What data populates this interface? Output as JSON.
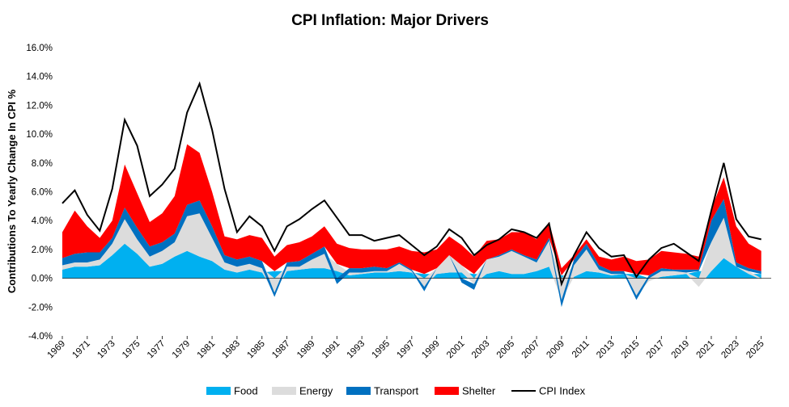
{
  "chart_data": {
    "type": "area",
    "title": "CPI Inflation: Major Drivers",
    "xlabel": "",
    "ylabel": "Contributions To Yearly Change In CPI %",
    "ylim": [
      -4.0,
      16.0
    ],
    "xlim": [
      1969,
      2025.8
    ],
    "y_ticks": [
      "16.0%",
      "14.0%",
      "12.0%",
      "10.0%",
      "8.0%",
      "6.0%",
      "4.0%",
      "2.0%",
      "0.0%",
      "-2.0%",
      "-4.0%"
    ],
    "y_tick_values": [
      16,
      14,
      12,
      10,
      8,
      6,
      4,
      2,
      0,
      -2,
      -4
    ],
    "x_ticks": [
      "1969",
      "1971",
      "1973",
      "1975",
      "1977",
      "1979",
      "1981",
      "1983",
      "1985",
      "1987",
      "1989",
      "1991",
      "1993",
      "1995",
      "1997",
      "1999",
      "2001",
      "2003",
      "2005",
      "2007",
      "2009",
      "2011",
      "2013",
      "2015",
      "2017",
      "2019",
      "2021",
      "2023",
      "2025"
    ],
    "grid": false,
    "legend_position": "bottom",
    "series": [
      {
        "name": "Food",
        "color": "#00b0f0",
        "type": "stacked-area",
        "x": [
          1969,
          1970,
          1971,
          1972,
          1973,
          1974,
          1975,
          1976,
          1977,
          1978,
          1979,
          1980,
          1981,
          1982,
          1983,
          1984,
          1985,
          1986,
          1987,
          1988,
          1989,
          1990,
          1991,
          1992,
          1993,
          1994,
          1995,
          1996,
          1997,
          1998,
          1999,
          2000,
          2001,
          2002,
          2003,
          2004,
          2005,
          2006,
          2007,
          2008,
          2009,
          2010,
          2011,
          2012,
          2013,
          2014,
          2015,
          2016,
          2017,
          2018,
          2019,
          2020,
          2021,
          2022,
          2023,
          2024,
          2025
        ],
        "values": [
          0.6,
          0.8,
          0.8,
          0.9,
          1.6,
          2.4,
          1.7,
          0.8,
          1.0,
          1.5,
          1.9,
          1.5,
          1.2,
          0.6,
          0.4,
          0.6,
          0.4,
          0.5,
          0.5,
          0.6,
          0.7,
          0.7,
          0.5,
          0.2,
          0.3,
          0.4,
          0.4,
          0.5,
          0.4,
          0.3,
          0.3,
          0.4,
          0.4,
          0.3,
          0.3,
          0.5,
          0.3,
          0.3,
          0.5,
          0.8,
          0.2,
          0.1,
          0.5,
          0.4,
          0.2,
          0.3,
          0.3,
          0.0,
          0.1,
          0.2,
          0.3,
          0.5,
          0.5,
          1.4,
          0.8,
          0.3,
          0.3
        ]
      },
      {
        "name": "Energy",
        "color": "#dcdcdc",
        "type": "stacked-area",
        "x": [
          1969,
          1970,
          1971,
          1972,
          1973,
          1974,
          1975,
          1976,
          1977,
          1978,
          1979,
          1980,
          1981,
          1982,
          1983,
          1984,
          1985,
          1986,
          1987,
          1988,
          1989,
          1990,
          1991,
          1992,
          1993,
          1994,
          1995,
          1996,
          1997,
          1998,
          1999,
          2000,
          2001,
          2002,
          2003,
          2004,
          2005,
          2006,
          2007,
          2008,
          2009,
          2010,
          2011,
          2012,
          2013,
          2014,
          2015,
          2016,
          2017,
          2018,
          2019,
          2020,
          2021,
          2022,
          2023,
          2024,
          2025
        ],
        "values": [
          0.3,
          0.3,
          0.3,
          0.4,
          0.8,
          1.7,
          1.0,
          0.7,
          0.9,
          1.0,
          2.4,
          3.0,
          1.6,
          0.5,
          0.4,
          0.4,
          0.3,
          -1.0,
          0.3,
          0.2,
          0.6,
          1.0,
          0.5,
          0.2,
          0.1,
          0.1,
          0.1,
          0.5,
          0.1,
          -0.6,
          0.4,
          1.2,
          0.5,
          -0.4,
          1.0,
          1.0,
          1.6,
          1.2,
          0.6,
          1.8,
          -1.5,
          0.8,
          1.5,
          0.2,
          0.1,
          0.0,
          -1.2,
          -0.2,
          0.4,
          0.3,
          0.1,
          -0.6,
          2.0,
          2.8,
          0.0,
          0.2,
          -0.1
        ]
      },
      {
        "name": "Transport",
        "color": "#0070c0",
        "type": "stacked-area",
        "x": [
          1969,
          1970,
          1971,
          1972,
          1973,
          1974,
          1975,
          1976,
          1977,
          1978,
          1979,
          1980,
          1981,
          1982,
          1983,
          1984,
          1985,
          1986,
          1987,
          1988,
          1989,
          1990,
          1991,
          1992,
          1993,
          1994,
          1995,
          1996,
          1997,
          1998,
          1999,
          2000,
          2001,
          2002,
          2003,
          2004,
          2005,
          2006,
          2007,
          2008,
          2009,
          2010,
          2011,
          2012,
          2013,
          2014,
          2015,
          2016,
          2017,
          2018,
          2019,
          2020,
          2021,
          2022,
          2023,
          2024,
          2025
        ],
        "values": [
          0.5,
          0.6,
          0.7,
          0.5,
          0.4,
          0.8,
          0.8,
          0.7,
          0.6,
          0.6,
          0.8,
          0.9,
          0.8,
          0.5,
          0.5,
          0.5,
          0.5,
          -0.3,
          0.3,
          0.4,
          0.4,
          0.5,
          -0.4,
          0.3,
          0.3,
          0.3,
          0.2,
          0.1,
          0.1,
          -0.3,
          0.0,
          0.0,
          -0.3,
          -0.4,
          0.0,
          0.1,
          0.1,
          0.1,
          0.2,
          0.2,
          -0.5,
          0.4,
          0.4,
          0.3,
          0.2,
          0.2,
          -0.3,
          0.2,
          0.2,
          0.1,
          0.2,
          0.1,
          1.5,
          1.3,
          0.3,
          0.2,
          0.2
        ]
      },
      {
        "name": "Shelter",
        "color": "#ff0000",
        "type": "stacked-area",
        "x": [
          1969,
          1970,
          1971,
          1972,
          1973,
          1974,
          1975,
          1976,
          1977,
          1978,
          1979,
          1980,
          1981,
          1982,
          1983,
          1984,
          1985,
          1986,
          1987,
          1988,
          1989,
          1990,
          1991,
          1992,
          1993,
          1994,
          1995,
          1996,
          1997,
          1998,
          1999,
          2000,
          2001,
          2002,
          2003,
          2004,
          2005,
          2006,
          2007,
          2008,
          2009,
          2010,
          2011,
          2012,
          2013,
          2014,
          2015,
          2016,
          2017,
          2018,
          2019,
          2020,
          2021,
          2022,
          2023,
          2024,
          2025
        ],
        "values": [
          1.8,
          3.0,
          1.8,
          1.0,
          1.2,
          3.0,
          2.4,
          1.7,
          2.0,
          2.6,
          4.2,
          3.3,
          2.4,
          1.3,
          1.4,
          1.5,
          1.6,
          1.0,
          1.2,
          1.3,
          1.2,
          1.4,
          1.4,
          1.4,
          1.3,
          1.2,
          1.3,
          1.1,
          1.3,
          1.5,
          1.3,
          1.3,
          1.4,
          1.2,
          1.3,
          1.1,
          1.2,
          1.6,
          1.4,
          1.1,
          0.5,
          0.3,
          0.3,
          0.6,
          0.8,
          1.0,
          0.9,
          1.1,
          1.2,
          1.2,
          1.1,
          0.9,
          0.8,
          1.5,
          2.5,
          1.7,
          1.4
        ]
      },
      {
        "name": "CPI Index",
        "color": "#000000",
        "type": "line",
        "x": [
          1969,
          1970,
          1971,
          1972,
          1973,
          1974,
          1975,
          1976,
          1977,
          1978,
          1979,
          1980,
          1981,
          1982,
          1983,
          1984,
          1985,
          1986,
          1987,
          1988,
          1989,
          1990,
          1991,
          1992,
          1993,
          1994,
          1995,
          1996,
          1997,
          1998,
          1999,
          2000,
          2001,
          2002,
          2003,
          2004,
          2005,
          2006,
          2007,
          2008,
          2009,
          2010,
          2011,
          2012,
          2013,
          2014,
          2015,
          2016,
          2017,
          2018,
          2019,
          2020,
          2021,
          2022,
          2023,
          2024,
          2025
        ],
        "values": [
          5.2,
          6.1,
          4.4,
          3.3,
          6.2,
          11.0,
          9.2,
          5.7,
          6.5,
          7.6,
          11.5,
          13.5,
          10.3,
          6.2,
          3.2,
          4.3,
          3.6,
          1.9,
          3.6,
          4.1,
          4.8,
          5.4,
          4.2,
          3.0,
          3.0,
          2.6,
          2.8,
          3.0,
          2.3,
          1.6,
          2.2,
          3.4,
          2.8,
          1.6,
          2.3,
          2.7,
          3.4,
          3.2,
          2.8,
          3.8,
          -0.4,
          1.6,
          3.2,
          2.1,
          1.5,
          1.6,
          0.1,
          1.3,
          2.1,
          2.4,
          1.8,
          1.2,
          4.7,
          8.0,
          4.1,
          2.9,
          2.7
        ]
      }
    ],
    "legend": [
      {
        "label": "Food",
        "color": "#00b0f0",
        "marker": "box"
      },
      {
        "label": "Energy",
        "color": "#dcdcdc",
        "marker": "box"
      },
      {
        "label": "Transport",
        "color": "#0070c0",
        "marker": "box"
      },
      {
        "label": "Shelter",
        "color": "#ff0000",
        "marker": "box"
      },
      {
        "label": "CPI Index",
        "color": "#000000",
        "marker": "line"
      }
    ]
  }
}
